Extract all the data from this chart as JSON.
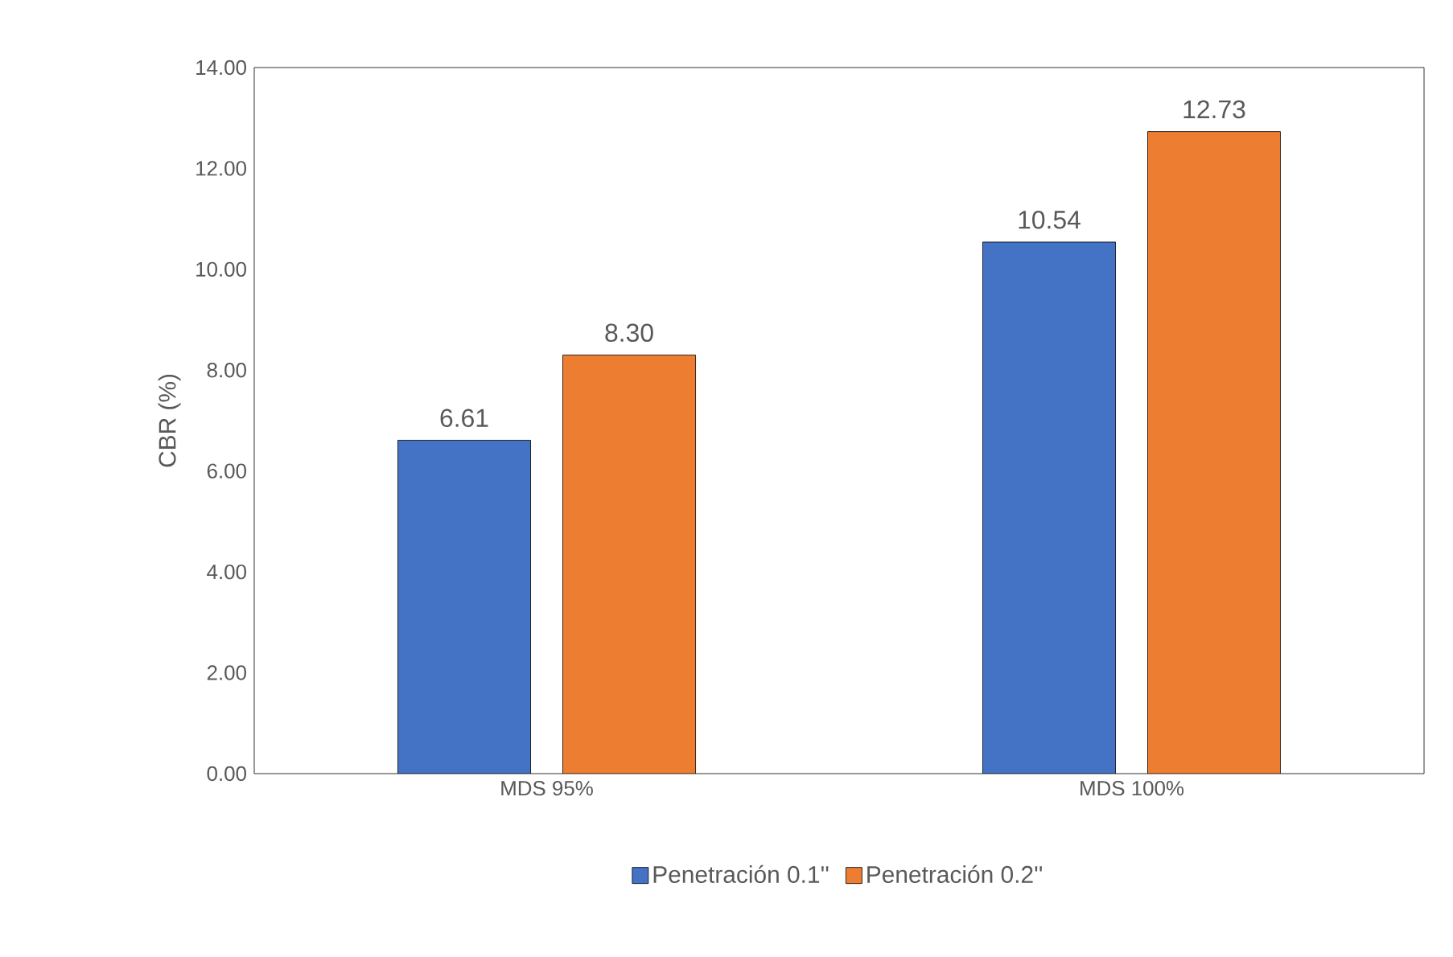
{
  "chart_data": {
    "type": "bar",
    "ylabel": "CBR (%)",
    "categories": [
      "MDS 95%",
      "MDS 100%"
    ],
    "series": [
      {
        "name": "Penetración 0.1''",
        "color": "#4472c4",
        "values": [
          6.61,
          10.54
        ],
        "value_labels": [
          "6.61",
          "10.54"
        ]
      },
      {
        "name": "Penetración 0.2''",
        "color": "#ed7d31",
        "values": [
          8.3,
          12.73
        ],
        "value_labels": [
          "8.30",
          "12.73"
        ]
      }
    ],
    "ylim": [
      0,
      14
    ],
    "yticks": [
      {
        "value": 0,
        "label": "0.00"
      },
      {
        "value": 2,
        "label": "2.00"
      },
      {
        "value": 4,
        "label": "4.00"
      },
      {
        "value": 6,
        "label": "6.00"
      },
      {
        "value": 8,
        "label": "8.00"
      },
      {
        "value": 10,
        "label": "10.00"
      },
      {
        "value": 12,
        "label": "12.00"
      },
      {
        "value": 14,
        "label": "14.00"
      }
    ],
    "grid": false,
    "legend": "bottom"
  }
}
